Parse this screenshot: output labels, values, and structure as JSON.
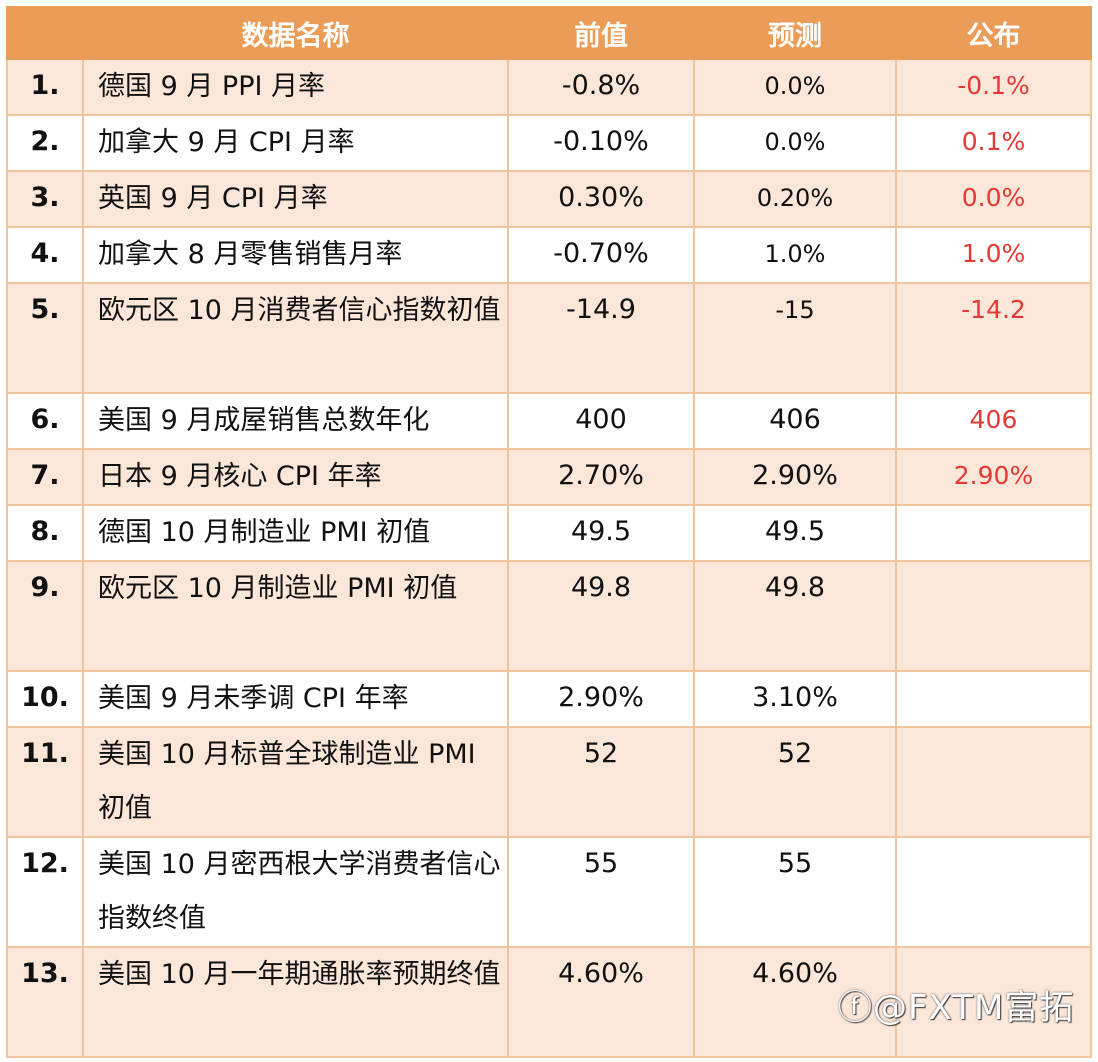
{
  "headers": {
    "num": "",
    "name": "数据名称",
    "prev": "前值",
    "forecast": "预测",
    "published": "公布"
  },
  "rows": [
    {
      "num": "1.",
      "name": "德国 9 月 PPI 月率",
      "prev": "-0.8%",
      "forecast": "0.0%",
      "published": "-0.1%"
    },
    {
      "num": "2.",
      "name": "加拿大 9 月 CPI 月率",
      "prev": "-0.10%",
      "forecast": "0.0%",
      "published": "0.1%"
    },
    {
      "num": "3.",
      "name": "英国 9 月 CPI 月率",
      "prev": "0.30%",
      "forecast": "0.20%",
      "published": "0.0%"
    },
    {
      "num": "4.",
      "name": "加拿大 8 月零售销售月率",
      "prev": "-0.70%",
      "forecast": "1.0%",
      "published": "1.0%"
    },
    {
      "num": "5.",
      "name": "欧元区 10 月消费者信心指数初值",
      "prev": "-14.9",
      "forecast": "-15",
      "published": "-14.2"
    },
    {
      "num": "6.",
      "name": "美国 9 月成屋销售总数年化",
      "prev": "400",
      "forecast": "406",
      "published": "406"
    },
    {
      "num": "7.",
      "name": "日本 9 月核心 CPI 年率",
      "prev": "2.70%",
      "forecast": "2.90%",
      "published": "2.90%"
    },
    {
      "num": "8.",
      "name": "德国 10 月制造业 PMI 初值",
      "prev": "49.5",
      "forecast": "49.5",
      "published": ""
    },
    {
      "num": "9.",
      "name": "欧元区 10 月制造业 PMI 初值",
      "prev": "49.8",
      "forecast": "49.8",
      "published": ""
    },
    {
      "num": "10.",
      "name": "美国 9 月未季调 CPI 年率",
      "prev": "2.90%",
      "forecast": "3.10%",
      "published": ""
    },
    {
      "num": "11.",
      "name": "美国 10 月标普全球制造业 PMI 初值",
      "prev": "52",
      "forecast": "52",
      "published": ""
    },
    {
      "num": "12.",
      "name": "美国 10 月密西根大学消费者信心指数终值",
      "prev": "55",
      "forecast": "55",
      "published": ""
    },
    {
      "num": "13.",
      "name": "美国 10 月一年期通胀率预期终值",
      "prev": "4.60%",
      "forecast": "4.60%",
      "published": ""
    }
  ],
  "watermark": "@FXTM富拓"
}
